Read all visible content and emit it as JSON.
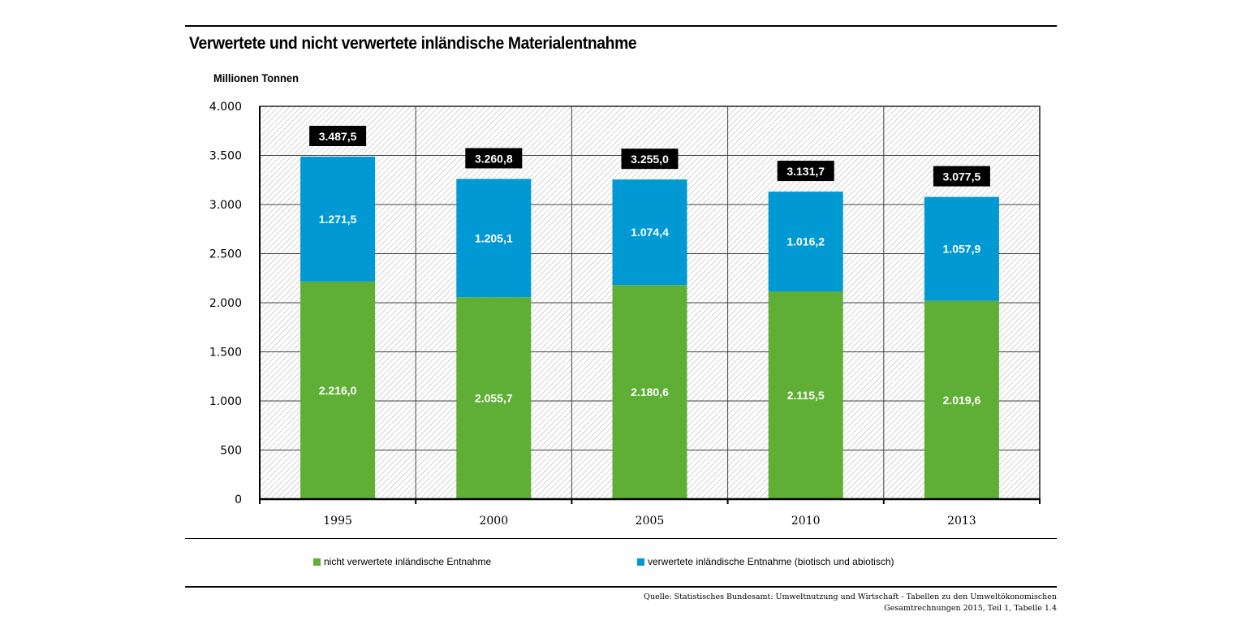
{
  "chart_data": {
    "type": "bar",
    "stacked": true,
    "title": "Verwertete und nicht verwertete inländische Materialentnahme",
    "ylabel": "Millionen Tonnen",
    "xlabel": "",
    "categories": [
      "1995",
      "2000",
      "2005",
      "2010",
      "2013"
    ],
    "ylim": [
      0,
      4000
    ],
    "yticks": [
      0,
      500,
      1000,
      1500,
      2000,
      2500,
      3000,
      3500,
      4000
    ],
    "ytick_labels": [
      "0",
      "500",
      "1.000",
      "1.500",
      "2.000",
      "2.500",
      "3.000",
      "3.500",
      "4.000"
    ],
    "grid": true,
    "series": [
      {
        "name": "nicht verwertete inländische Entnahme",
        "color": "#5fae35",
        "values": [
          2216.0,
          2055.7,
          2180.6,
          2115.5,
          2019.6
        ],
        "labels": [
          "2.216,0",
          "2.055,7",
          "2.180,6",
          "2.115,5",
          "2.019,6"
        ]
      },
      {
        "name": "verwertete inländische Entnahme (biotisch und abiotisch)",
        "color": "#0099d3",
        "values": [
          1271.5,
          1205.1,
          1074.4,
          1016.2,
          1057.9
        ],
        "labels": [
          "1.271,5",
          "1.205,1",
          "1.074,4",
          "1.016,2",
          "1.057,9"
        ]
      }
    ],
    "totals": [
      3487.5,
      3260.8,
      3255.0,
      3131.7,
      3077.5
    ],
    "total_labels": [
      "3.487,5",
      "3.260,8",
      "3.255,0",
      "3.131,7",
      "3.077,5"
    ],
    "legend_position": "bottom",
    "source": [
      "Quelle: Statistisches Bundesamt: Umweltnutzung und Wirtschaft - Tabellen zu den Umweltökonomischen",
      "Gesamtrechnungen 2015, Teil 1, Tabelle 1.4"
    ]
  }
}
